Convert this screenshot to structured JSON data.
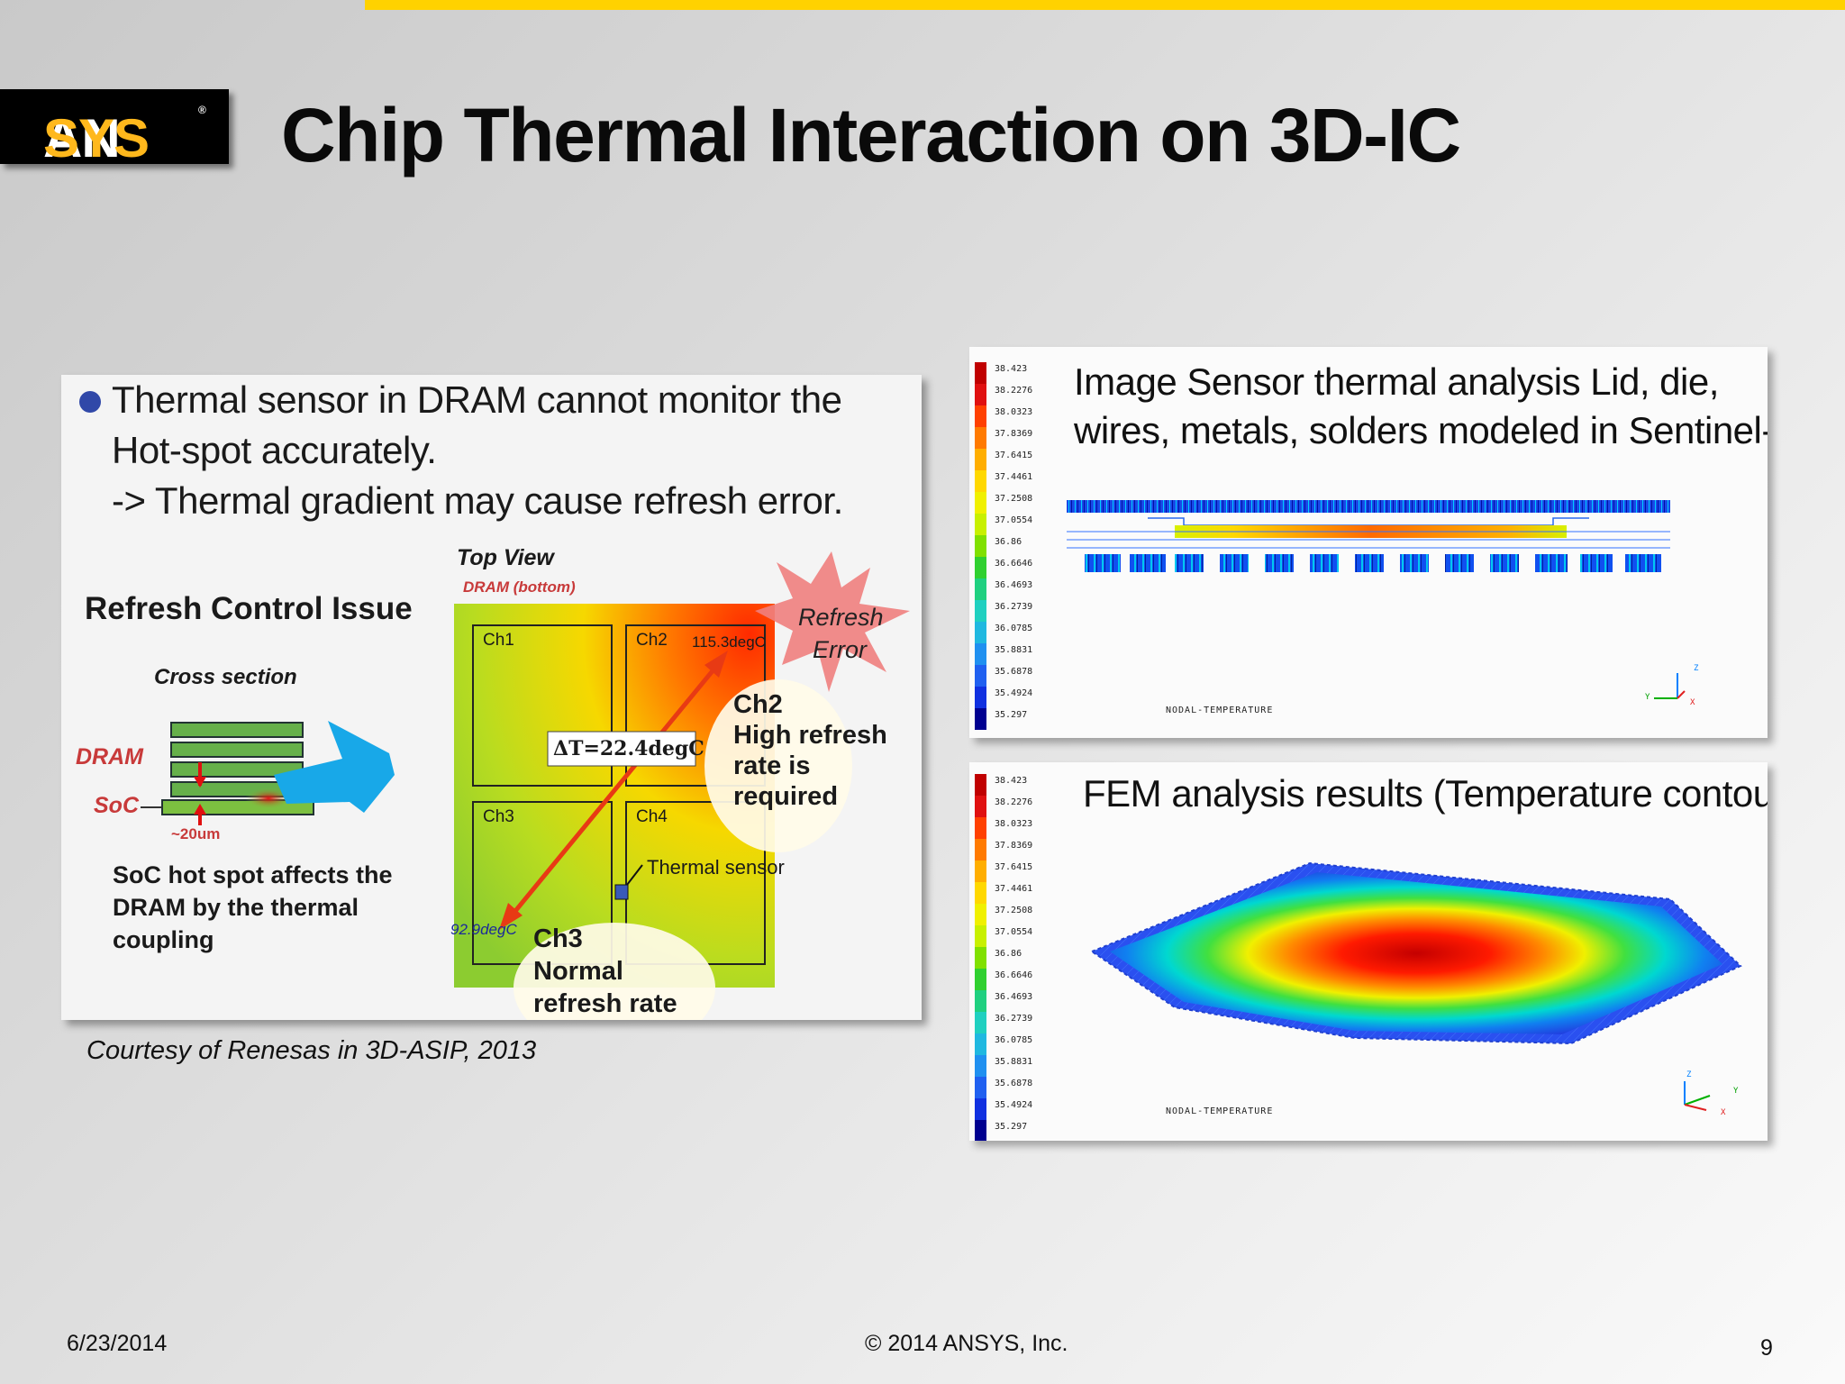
{
  "brand": {
    "logo_an": "AN",
    "logo_sys": "SYS",
    "logo_mark": "®"
  },
  "title": "Chip Thermal Interaction on 3D-IC",
  "left_figure": {
    "bullet_line1": "Thermal sensor in DRAM cannot monitor the",
    "bullet_line2": "Hot-spot accurately.",
    "bullet_line3": "-> Thermal gradient may cause refresh error.",
    "top_view": "Top View",
    "dram_bottom": "DRAM (bottom)",
    "refresh_control": "Refresh Control Issue",
    "cross_section": "Cross section",
    "dram": "DRAM",
    "soc": "SoC",
    "thickness": "~20um",
    "soc_desc_1": "SoC hot spot affects the",
    "soc_desc_2": "DRAM by the thermal",
    "soc_desc_3": "coupling",
    "ch1": "Ch1",
    "ch2": "Ch2",
    "ch3": "Ch3",
    "ch4": "Ch4",
    "temp_high": "115.3degC",
    "temp_low": "92.9degC",
    "delta_t": "ΔT=22.4degC",
    "refresh_error_1": "Refresh",
    "refresh_error_2": "Error",
    "ch2_note_1": "Ch2",
    "ch2_note_2": "High refresh",
    "ch2_note_3": "rate is",
    "ch2_note_4": "required",
    "thermal_sensor": "Thermal sensor",
    "ch3_note_1": "Ch3",
    "ch3_note_2": "Normal",
    "ch3_note_3": "refresh rate"
  },
  "courtesy": "Courtesy of Renesas in 3D-ASIP, 2013",
  "legend_values": [
    "38.423",
    "38.2276",
    "38.0323",
    "37.8369",
    "37.6415",
    "37.4461",
    "37.2508",
    "37.0554",
    "36.86",
    "36.6646",
    "36.4693",
    "36.2739",
    "36.0785",
    "35.8831",
    "35.6878",
    "35.4924",
    "35.297"
  ],
  "legend_colors": [
    "#c00000",
    "#e01010",
    "#ff4000",
    "#ff7a00",
    "#ffae00",
    "#ffd800",
    "#f0f000",
    "#c8f000",
    "#80e000",
    "#30d030",
    "#20d080",
    "#20d0c0",
    "#20b8e0",
    "#2090f0",
    "#2060f0",
    "#1030e0",
    "#000090"
  ],
  "sensor_panel": {
    "title_line1": "Image Sensor thermal analysis Lid, die,",
    "title_line2": "wires, metals, solders modeled in Sentinel-TI",
    "nodal": "NODAL-TEMPERATURE",
    "axis_z": "Z",
    "axis_y": "Y",
    "axis_x": "X"
  },
  "fem_panel": {
    "title": "FEM analysis results (Temperature contours)",
    "nodal": "NODAL-TEMPERATURE",
    "axis_z": "Z",
    "axis_y": "Y",
    "axis_x": "X"
  },
  "footer": {
    "date": "6/23/2014",
    "copyright": "© 2014 ANSYS, Inc.",
    "page": "9"
  }
}
